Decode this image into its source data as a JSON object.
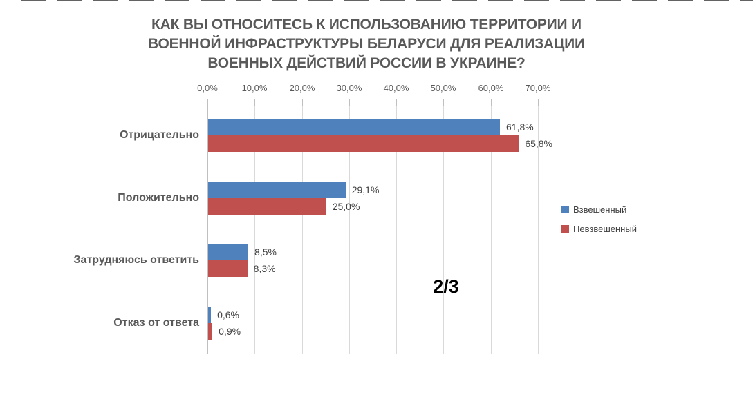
{
  "chart_data": {
    "type": "bar",
    "orientation": "horizontal",
    "title": "КАК ВЫ ОТНОСИТЕСЬ К ИСПОЛЬЗОВАНИЮ ТЕРРИТОРИИ И ВОЕННОЙ ИНФРАСТРУКТУРЫ БЕЛАРУСИ ДЛЯ РЕАЛИЗАЦИИ ВОЕННЫХ ДЕЙСТВИЙ РОССИИ В УКРАИНЕ?",
    "title_lines": [
      "КАК ВЫ ОТНОСИТЕСЬ К ИСПОЛЬЗОВАНИЮ ТЕРРИТОРИИ И",
      "ВОЕННОЙ ИНФРАСТРУКТУРЫ БЕЛАРУСИ ДЛЯ РЕАЛИЗАЦИИ",
      "ВОЕННЫХ ДЕЙСТВИЙ РОССИИ В УКРАИНЕ?"
    ],
    "categories": [
      "Отрицательно",
      "Положительно",
      "Затрудняюсь ответить",
      "Отказ от ответа"
    ],
    "series": [
      {
        "name": "Взвешенный",
        "color": "#4F81BD",
        "values": [
          61.8,
          29.1,
          8.5,
          0.6
        ],
        "labels": [
          "61,8%",
          "29,1%",
          "8,5%",
          "0,6%"
        ]
      },
      {
        "name": "Невзвешенный",
        "color": "#C0504D",
        "values": [
          65.8,
          25.0,
          8.3,
          0.9
        ],
        "labels": [
          "65,8%",
          "25,0%",
          "8,3%",
          "0,9%"
        ]
      }
    ],
    "x_axis": {
      "position": "top",
      "min": 0,
      "max": 70,
      "tick_labels": [
        "0,0%",
        "10,0%",
        "20,0%",
        "30,0%",
        "40,0%",
        "50,0%",
        "60,0%",
        "70,0%"
      ],
      "grid": true
    },
    "legend": {
      "position": "right",
      "entries": [
        "Взвешенный",
        "Невзвешенный"
      ]
    },
    "annotation": "2/3",
    "colors": {
      "title_text": "#595959",
      "axis_text": "#595959",
      "category_text": "#595959",
      "data_label_text": "#404040",
      "gridline": "#D9D9D9",
      "annotation_text": "#000000",
      "background": "#FFFFFF"
    }
  }
}
